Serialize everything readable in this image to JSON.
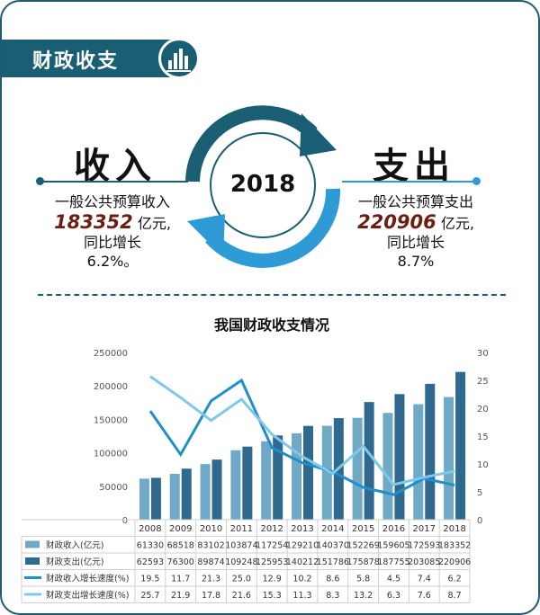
{
  "header": {
    "title": "财政收支",
    "icon": "bar-chart-icon"
  },
  "income": {
    "label": "收入",
    "line1": "一般公共预算收入",
    "amount": "183352",
    "unit": " 亿元,",
    "line3": "同比增长",
    "line4": "6.2%。"
  },
  "expense": {
    "label": "支出",
    "line1": "一般公共预算支出",
    "amount": "220906",
    "unit": " 亿元,",
    "line3": "同比增长",
    "line4": "8.7%"
  },
  "center_year": "2018",
  "colors": {
    "dark": "#1a5e74",
    "accent": "#2e9bd6",
    "income_bar": "#6fa9c6",
    "expense_bar": "#2f6a8e",
    "income_line": "#1f8fc9",
    "expense_line": "#7fc8ec"
  },
  "chart_data": {
    "type": "bar",
    "title": "我国财政收支情况",
    "categories": [
      "2008",
      "2009",
      "2010",
      "2011",
      "2012",
      "2013",
      "2014",
      "2015",
      "2016",
      "2017",
      "2018"
    ],
    "ylim_left": [
      0,
      250000
    ],
    "yticks_left": [
      "0",
      "50000",
      "100000",
      "150000",
      "200000",
      "250000"
    ],
    "ylim_right": [
      0,
      30
    ],
    "yticks_right": [
      "0",
      "5",
      "10",
      "15",
      "20",
      "25",
      "30"
    ],
    "series": [
      {
        "name": "财政收入(亿元)",
        "kind": "bar",
        "axis": "left",
        "values": [
          61330,
          68518,
          83102,
          103874,
          117254,
          129210,
          140370,
          152269,
          159605,
          172593,
          183352
        ]
      },
      {
        "name": "财政支出(亿元)",
        "kind": "bar",
        "axis": "left",
        "values": [
          62593,
          76300,
          89874,
          109248,
          125953,
          140212,
          151786,
          175878,
          187755,
          203085,
          220906
        ]
      },
      {
        "name": "财政收入增长速度(%)",
        "kind": "line",
        "axis": "right",
        "values": [
          19.5,
          11.7,
          21.3,
          25.0,
          12.9,
          10.2,
          8.6,
          5.8,
          4.5,
          7.4,
          6.2
        ]
      },
      {
        "name": "财政支出增长速度(%)",
        "kind": "line",
        "axis": "right",
        "values": [
          25.7,
          21.9,
          17.8,
          21.6,
          15.3,
          11.3,
          8.3,
          13.2,
          6.3,
          7.6,
          8.7
        ]
      }
    ],
    "legend": "table-below",
    "grid": false
  }
}
